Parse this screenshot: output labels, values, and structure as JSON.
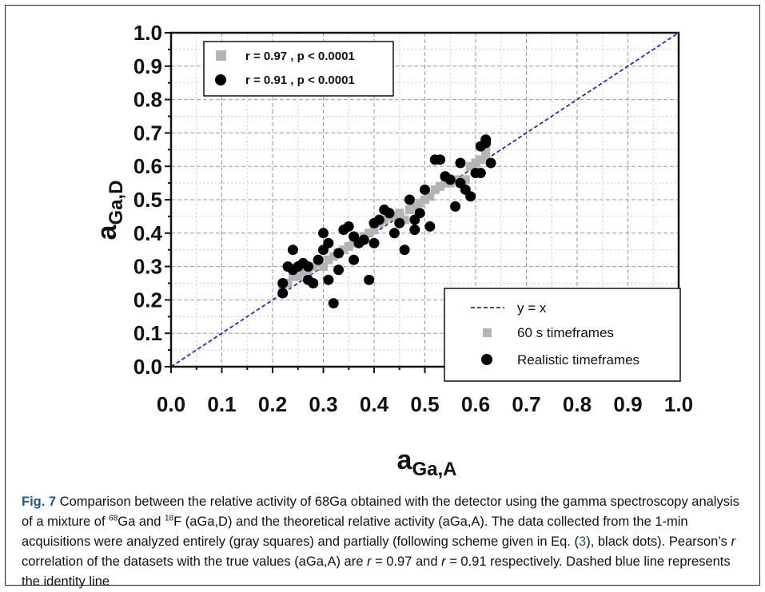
{
  "chart_data": {
    "type": "scatter",
    "xlabel_main": "a",
    "xlabel_sub": "Ga,A",
    "ylabel_main": "a",
    "ylabel_sub": "Ga,D",
    "xlim": [
      0,
      1
    ],
    "ylim": [
      0,
      1
    ],
    "xticks": [
      "0.0",
      "0.1",
      "0.2",
      "0.3",
      "0.4",
      "0.5",
      "0.6",
      "0.7",
      "0.8",
      "0.9",
      "1.0"
    ],
    "yticks": [
      "0.0",
      "0.1",
      "0.2",
      "0.3",
      "0.4",
      "0.5",
      "0.6",
      "0.7",
      "0.8",
      "0.9",
      "1.0"
    ],
    "grid": true,
    "stats_legend": {
      "placement": "top-left",
      "entries": [
        "r = 0.97 , p < 0.0001",
        "r = 0.91 , p < 0.0001"
      ]
    },
    "legend": {
      "placement": "bottom-right",
      "entries": [
        "y = x",
        "60 s timeframes",
        "Realistic timeframes"
      ]
    },
    "identity_line": {
      "x": [
        0,
        1
      ],
      "y": [
        0,
        1
      ],
      "color": "#1f2fb8"
    },
    "series": [
      {
        "name": "60 s timeframes",
        "marker": "square",
        "color": "#b4b4b4",
        "points": [
          [
            0.22,
            0.24
          ],
          [
            0.23,
            0.25
          ],
          [
            0.24,
            0.27
          ],
          [
            0.25,
            0.27
          ],
          [
            0.26,
            0.28
          ],
          [
            0.27,
            0.29
          ],
          [
            0.28,
            0.3
          ],
          [
            0.29,
            0.31
          ],
          [
            0.3,
            0.3
          ],
          [
            0.31,
            0.32
          ],
          [
            0.32,
            0.33
          ],
          [
            0.33,
            0.34
          ],
          [
            0.34,
            0.35
          ],
          [
            0.35,
            0.36
          ],
          [
            0.36,
            0.37
          ],
          [
            0.37,
            0.38
          ],
          [
            0.38,
            0.39
          ],
          [
            0.39,
            0.4
          ],
          [
            0.4,
            0.41
          ],
          [
            0.41,
            0.43
          ],
          [
            0.42,
            0.44
          ],
          [
            0.43,
            0.45
          ],
          [
            0.44,
            0.45
          ],
          [
            0.45,
            0.46
          ],
          [
            0.46,
            0.44
          ],
          [
            0.47,
            0.47
          ],
          [
            0.48,
            0.48
          ],
          [
            0.49,
            0.49
          ],
          [
            0.5,
            0.5
          ],
          [
            0.51,
            0.51
          ],
          [
            0.52,
            0.53
          ],
          [
            0.53,
            0.54
          ],
          [
            0.54,
            0.55
          ],
          [
            0.55,
            0.55
          ],
          [
            0.56,
            0.56
          ],
          [
            0.57,
            0.55
          ],
          [
            0.58,
            0.56
          ],
          [
            0.59,
            0.6
          ],
          [
            0.6,
            0.61
          ],
          [
            0.61,
            0.62
          ],
          [
            0.62,
            0.63
          ],
          [
            0.62,
            0.65
          ]
        ]
      },
      {
        "name": "Realistic timeframes",
        "marker": "circle",
        "color": "#000000",
        "points": [
          [
            0.22,
            0.22
          ],
          [
            0.22,
            0.25
          ],
          [
            0.23,
            0.3
          ],
          [
            0.24,
            0.35
          ],
          [
            0.24,
            0.29
          ],
          [
            0.25,
            0.3
          ],
          [
            0.26,
            0.31
          ],
          [
            0.27,
            0.3
          ],
          [
            0.27,
            0.26
          ],
          [
            0.28,
            0.25
          ],
          [
            0.29,
            0.32
          ],
          [
            0.3,
            0.35
          ],
          [
            0.3,
            0.4
          ],
          [
            0.31,
            0.26
          ],
          [
            0.31,
            0.37
          ],
          [
            0.32,
            0.19
          ],
          [
            0.33,
            0.29
          ],
          [
            0.33,
            0.34
          ],
          [
            0.34,
            0.41
          ],
          [
            0.35,
            0.42
          ],
          [
            0.36,
            0.39
          ],
          [
            0.36,
            0.32
          ],
          [
            0.37,
            0.37
          ],
          [
            0.38,
            0.38
          ],
          [
            0.39,
            0.26
          ],
          [
            0.4,
            0.43
          ],
          [
            0.4,
            0.37
          ],
          [
            0.41,
            0.44
          ],
          [
            0.42,
            0.47
          ],
          [
            0.43,
            0.46
          ],
          [
            0.44,
            0.4
          ],
          [
            0.45,
            0.43
          ],
          [
            0.46,
            0.35
          ],
          [
            0.47,
            0.5
          ],
          [
            0.48,
            0.41
          ],
          [
            0.48,
            0.44
          ],
          [
            0.49,
            0.46
          ],
          [
            0.5,
            0.53
          ],
          [
            0.51,
            0.42
          ],
          [
            0.52,
            0.62
          ],
          [
            0.53,
            0.62
          ],
          [
            0.54,
            0.57
          ],
          [
            0.55,
            0.56
          ],
          [
            0.56,
            0.48
          ],
          [
            0.57,
            0.61
          ],
          [
            0.57,
            0.55
          ],
          [
            0.58,
            0.53
          ],
          [
            0.59,
            0.51
          ],
          [
            0.6,
            0.58
          ],
          [
            0.61,
            0.66
          ],
          [
            0.61,
            0.58
          ],
          [
            0.62,
            0.67
          ],
          [
            0.62,
            0.68
          ],
          [
            0.63,
            0.61
          ]
        ]
      }
    ]
  },
  "caption": {
    "fig_label": "Fig. 7",
    "p1": " Comparison between the relative activity of 68Ga obtained with the detector using the gamma spectroscopy analysis of a mixture of ",
    "iso1_sup": "68",
    "iso1": "Ga and ",
    "iso2_sup": "18",
    "iso2": "F (aGa,D) and the theoretical relative activity (aGa,A). The data collected from the 1-min acquisitions were analyzed entirely (gray squares) and partially (following scheme given in Eq. (",
    "eq_ref": "3",
    "p2": "), black dots). Pearson’s ",
    "r1": "r",
    "p3": " correlation of the datasets with the true values (aGa,A) are ",
    "r2": "r",
    "p4": " = 0.97 and ",
    "r3": "r",
    "p5": " = 0.91 respectively. Dashed blue line represents the identity line"
  }
}
